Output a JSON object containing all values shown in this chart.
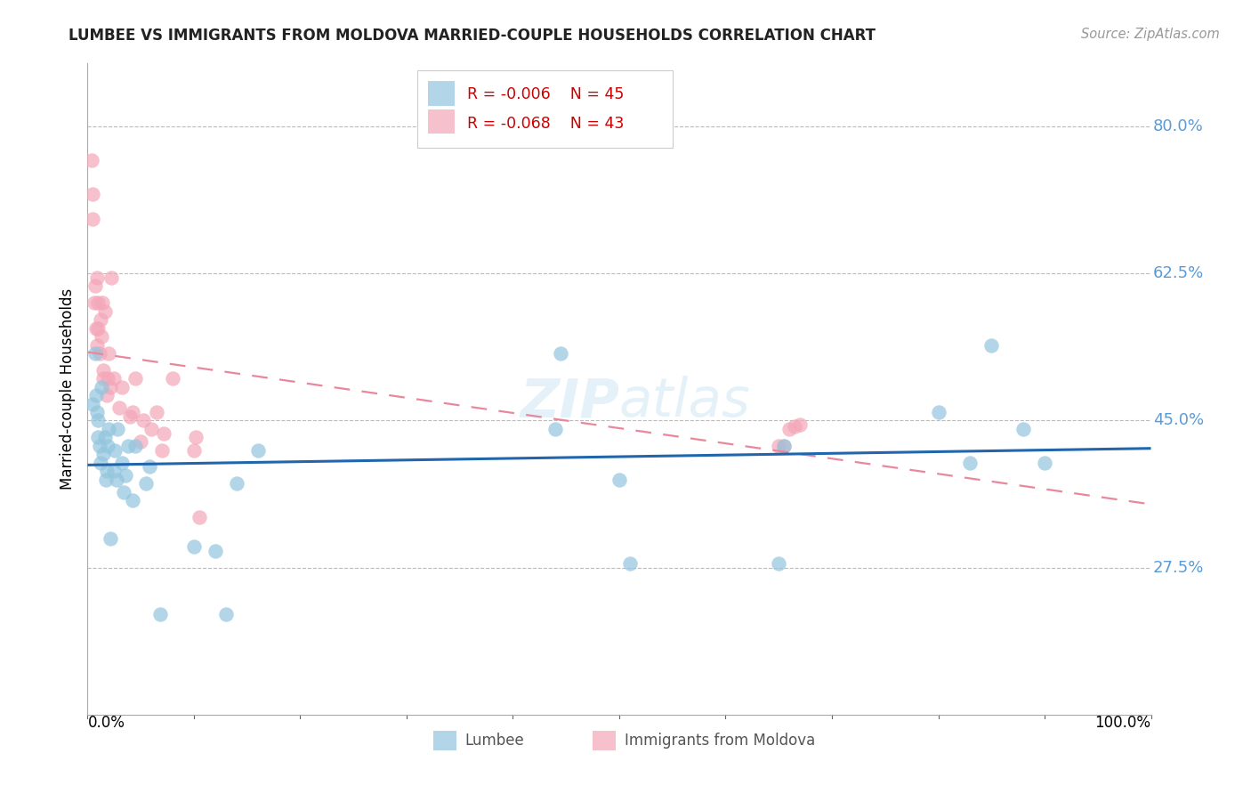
{
  "title": "LUMBEE VS IMMIGRANTS FROM MOLDOVA MARRIED-COUPLE HOUSEHOLDS CORRELATION CHART",
  "source": "Source: ZipAtlas.com",
  "ylabel": "Married-couple Households",
  "yticks": [
    0.275,
    0.45,
    0.625,
    0.8
  ],
  "ytick_labels": [
    "27.5%",
    "45.0%",
    "62.5%",
    "80.0%"
  ],
  "ylim": [
    0.1,
    0.875
  ],
  "xlim": [
    0.0,
    1.0
  ],
  "legend_r1": "R = -0.006",
  "legend_n1": "N = 45",
  "legend_r2": "R = -0.068",
  "legend_n2": "N = 43",
  "blue_color": "#92c5de",
  "pink_color": "#f4a6b8",
  "line_blue": "#2166ac",
  "line_pink": "#e8889a",
  "watermark_zip": "ZIP",
  "watermark_atlas": "atlas",
  "lumbee_x": [
    0.005,
    0.007,
    0.008,
    0.009,
    0.01,
    0.01,
    0.011,
    0.012,
    0.013,
    0.015,
    0.016,
    0.017,
    0.018,
    0.019,
    0.02,
    0.021,
    0.025,
    0.026,
    0.027,
    0.028,
    0.032,
    0.034,
    0.036,
    0.038,
    0.042,
    0.045,
    0.055,
    0.058,
    0.068,
    0.1,
    0.12,
    0.13,
    0.14,
    0.16,
    0.44,
    0.445,
    0.5,
    0.51,
    0.65,
    0.655,
    0.8,
    0.83,
    0.85,
    0.88,
    0.9
  ],
  "lumbee_y": [
    0.47,
    0.53,
    0.48,
    0.46,
    0.45,
    0.43,
    0.42,
    0.4,
    0.49,
    0.41,
    0.43,
    0.38,
    0.39,
    0.42,
    0.44,
    0.31,
    0.39,
    0.415,
    0.38,
    0.44,
    0.4,
    0.365,
    0.385,
    0.42,
    0.355,
    0.42,
    0.375,
    0.395,
    0.22,
    0.3,
    0.295,
    0.22,
    0.375,
    0.415,
    0.44,
    0.53,
    0.38,
    0.28,
    0.28,
    0.42,
    0.46,
    0.4,
    0.54,
    0.44,
    0.4
  ],
  "moldova_x": [
    0.004,
    0.005,
    0.005,
    0.006,
    0.007,
    0.008,
    0.009,
    0.009,
    0.01,
    0.01,
    0.011,
    0.012,
    0.013,
    0.014,
    0.015,
    0.015,
    0.016,
    0.018,
    0.019,
    0.02,
    0.021,
    0.022,
    0.025,
    0.03,
    0.032,
    0.04,
    0.042,
    0.045,
    0.05,
    0.052,
    0.06,
    0.065,
    0.07,
    0.072,
    0.08,
    0.1,
    0.102,
    0.105,
    0.65,
    0.655,
    0.66,
    0.665,
    0.67
  ],
  "moldova_y": [
    0.76,
    0.72,
    0.69,
    0.59,
    0.61,
    0.56,
    0.54,
    0.62,
    0.59,
    0.56,
    0.53,
    0.57,
    0.55,
    0.59,
    0.51,
    0.5,
    0.58,
    0.48,
    0.5,
    0.53,
    0.49,
    0.62,
    0.5,
    0.465,
    0.49,
    0.455,
    0.46,
    0.5,
    0.425,
    0.45,
    0.44,
    0.46,
    0.415,
    0.435,
    0.5,
    0.415,
    0.43,
    0.335,
    0.42,
    0.42,
    0.44,
    0.443,
    0.445
  ],
  "background_color": "#ffffff",
  "grid_color": "#bbbbbb"
}
